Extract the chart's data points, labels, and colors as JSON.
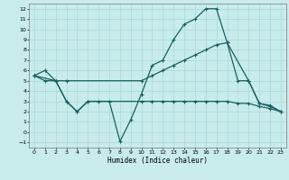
{
  "xlabel": "Humidex (Indice chaleur)",
  "bg_color": "#c8ecec",
  "grid_color": "#b0dada",
  "line_color": "#1a6060",
  "xlim": [
    -0.5,
    23.5
  ],
  "ylim": [
    -1.5,
    12.5
  ],
  "xticks": [
    0,
    1,
    2,
    3,
    4,
    5,
    6,
    7,
    8,
    9,
    10,
    11,
    12,
    13,
    14,
    15,
    16,
    17,
    18,
    19,
    20,
    21,
    22,
    23
  ],
  "yticks": [
    -1,
    0,
    1,
    2,
    3,
    4,
    5,
    6,
    7,
    8,
    9,
    10,
    11,
    12
  ],
  "line1_x": [
    0,
    1,
    2,
    3,
    4,
    5,
    6,
    7,
    8,
    9,
    10,
    11,
    12,
    13,
    14,
    15,
    16,
    17,
    18,
    19,
    20,
    21,
    22,
    23
  ],
  "line1_y": [
    5.5,
    6.0,
    5.0,
    3.0,
    2.0,
    3.0,
    3.0,
    3.0,
    -0.9,
    1.2,
    3.7,
    6.5,
    7.0,
    9.0,
    10.5,
    11.0,
    12.0,
    12.0,
    8.7,
    5.0,
    5.0,
    2.8,
    2.6,
    2.0
  ],
  "line2_x": [
    0,
    1,
    2,
    3,
    10,
    11,
    12,
    13,
    14,
    15,
    16,
    17,
    18,
    20,
    21,
    22,
    23
  ],
  "line2_y": [
    5.5,
    5.0,
    5.0,
    5.0,
    5.0,
    5.5,
    6.0,
    6.5,
    7.0,
    7.5,
    8.0,
    8.5,
    8.7,
    5.0,
    2.8,
    2.5,
    2.0
  ],
  "line3_x": [
    0,
    2,
    3,
    4,
    5,
    10,
    11,
    12,
    13,
    14,
    15,
    16,
    17,
    18,
    19,
    20,
    21,
    22,
    23
  ],
  "line3_y": [
    5.5,
    5.0,
    3.0,
    2.0,
    3.0,
    3.0,
    3.0,
    3.0,
    3.0,
    3.0,
    3.0,
    3.0,
    3.0,
    3.0,
    2.8,
    2.8,
    2.5,
    2.3,
    2.0
  ]
}
